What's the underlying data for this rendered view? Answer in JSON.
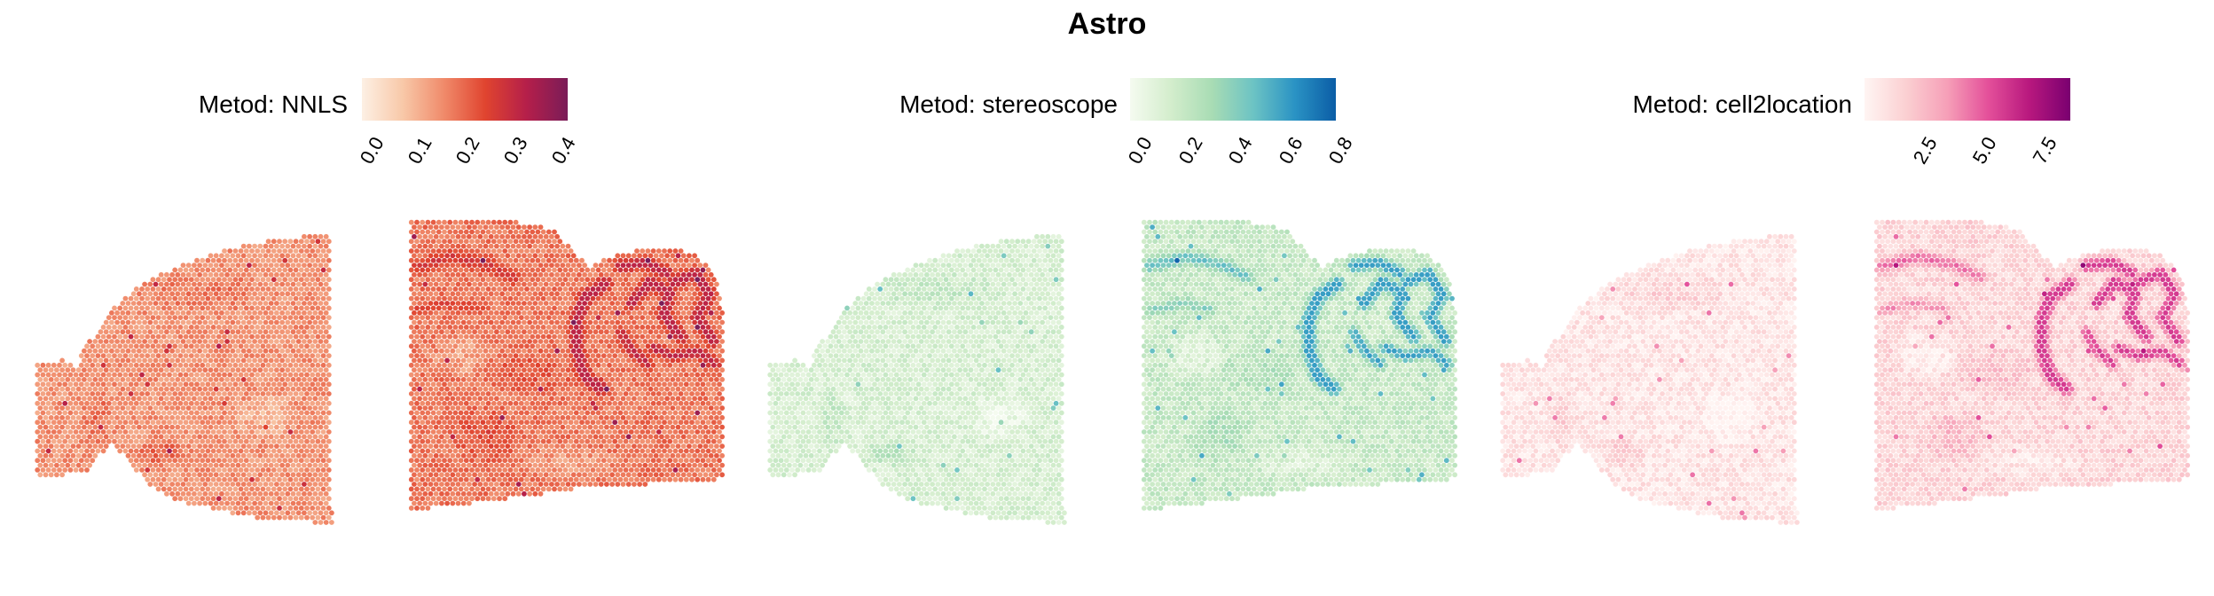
{
  "title": "Astro",
  "chart_data": [
    {
      "type": "heatmap",
      "legend_title": "Metod: NNLS",
      "colormap": [
        "#fdf0e4",
        "#f8c8a8",
        "#f08a6a",
        "#e0442f",
        "#b51f4a",
        "#7a1c58"
      ],
      "scale_min": 0.0,
      "scale_max": 0.43,
      "ticks": [
        "0.0",
        "0.1",
        "0.2",
        "0.3",
        "0.4"
      ],
      "tick_values": [
        0.0,
        0.1,
        0.2,
        0.3,
        0.4
      ],
      "base_level": 0.17,
      "highlight_level": 0.33,
      "section_labels": []
    },
    {
      "type": "heatmap",
      "legend_title": "Metod: stereoscope",
      "colormap": [
        "#f5fbf0",
        "#d3edcc",
        "#a8dcb4",
        "#6cc3c4",
        "#2a93c4",
        "#0b5da6"
      ],
      "scale_min": 0.0,
      "scale_max": 0.82,
      "ticks": [
        "0.0",
        "0.2",
        "0.4",
        "0.6",
        "0.8"
      ],
      "tick_values": [
        0.0,
        0.2,
        0.4,
        0.6,
        0.8
      ],
      "base_level": 0.16,
      "highlight_level": 0.62,
      "section_labels": []
    },
    {
      "type": "heatmap",
      "legend_title": "Metod: cell2location",
      "colormap": [
        "#fff5f3",
        "#fbd0d2",
        "#f6a0b8",
        "#e4509a",
        "#b8187e",
        "#7a0070"
      ],
      "scale_min": 0.4,
      "scale_max": 9.0,
      "ticks": [
        "2.5",
        "5.0",
        "7.5"
      ],
      "tick_values": [
        2.5,
        5.0,
        7.5
      ],
      "base_level": 1.4,
      "highlight_level": 6.2,
      "section_labels": []
    }
  ]
}
